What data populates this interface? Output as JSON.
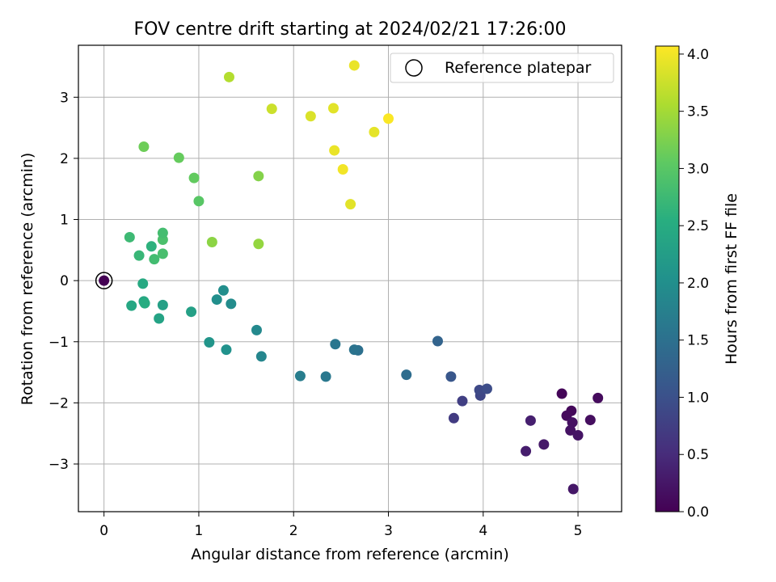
{
  "chart_data": {
    "type": "scatter",
    "title": "FOV centre drift starting at 2024/02/21 17:26:00",
    "xlabel": "Angular distance from reference (arcmin)",
    "ylabel": "Rotation from reference (arcmin)",
    "xlim": [
      -0.27,
      5.46
    ],
    "ylim": [
      -3.78,
      3.85
    ],
    "xticks": [
      0,
      1,
      2,
      3,
      4,
      5
    ],
    "xtick_labels": [
      "0",
      "1",
      "2",
      "3",
      "4",
      "5"
    ],
    "yticks": [
      -3,
      -2,
      -1,
      0,
      1,
      2,
      3
    ],
    "ytick_labels": [
      "−3",
      "−2",
      "−1",
      "0",
      "1",
      "2",
      "3"
    ],
    "grid": true,
    "legend": {
      "position": "upper right",
      "entries": [
        {
          "label": "Reference platepar",
          "marker": "open-circle"
        }
      ]
    },
    "reference_point": {
      "x": 0,
      "y": 0
    },
    "colorbar": {
      "label": "Hours from first FF file",
      "range": [
        0.0,
        4.07
      ],
      "colormap": "viridis",
      "ticks": [
        0.0,
        0.5,
        1.0,
        1.5,
        2.0,
        2.5,
        3.0,
        3.5,
        4.0
      ],
      "tick_labels": [
        "0.0",
        "0.5",
        "1.0",
        "1.5",
        "2.0",
        "2.5",
        "3.0",
        "3.5",
        "4.0"
      ]
    },
    "points": [
      {
        "x": 0.0,
        "y": 0.0,
        "hours": 0.0
      },
      {
        "x": 4.83,
        "y": -1.85,
        "hours": 0.05
      },
      {
        "x": 4.93,
        "y": -2.13,
        "hours": 0.08
      },
      {
        "x": 4.88,
        "y": -2.21,
        "hours": 0.1
      },
      {
        "x": 5.21,
        "y": -1.92,
        "hours": 0.12
      },
      {
        "x": 5.13,
        "y": -2.28,
        "hours": 0.15
      },
      {
        "x": 4.94,
        "y": -2.32,
        "hours": 0.18
      },
      {
        "x": 4.92,
        "y": -2.45,
        "hours": 0.2
      },
      {
        "x": 5.0,
        "y": -2.53,
        "hours": 0.22
      },
      {
        "x": 4.95,
        "y": -3.41,
        "hours": 0.25
      },
      {
        "x": 4.64,
        "y": -2.68,
        "hours": 0.28
      },
      {
        "x": 4.45,
        "y": -2.79,
        "hours": 0.32
      },
      {
        "x": 4.5,
        "y": -2.29,
        "hours": 0.35
      },
      {
        "x": 3.69,
        "y": -2.25,
        "hours": 0.7
      },
      {
        "x": 3.78,
        "y": -1.97,
        "hours": 0.75
      },
      {
        "x": 3.97,
        "y": -1.88,
        "hours": 0.85
      },
      {
        "x": 3.96,
        "y": -1.79,
        "hours": 0.9
      },
      {
        "x": 4.04,
        "y": -1.77,
        "hours": 0.95
      },
      {
        "x": 3.66,
        "y": -1.57,
        "hours": 1.1
      },
      {
        "x": 3.52,
        "y": -0.99,
        "hours": 1.3
      },
      {
        "x": 3.19,
        "y": -1.54,
        "hours": 1.45
      },
      {
        "x": 2.68,
        "y": -1.14,
        "hours": 1.5
      },
      {
        "x": 2.64,
        "y": -1.13,
        "hours": 1.55
      },
      {
        "x": 2.44,
        "y": -1.04,
        "hours": 1.6
      },
      {
        "x": 2.34,
        "y": -1.57,
        "hours": 1.62
      },
      {
        "x": 2.07,
        "y": -1.56,
        "hours": 1.7
      },
      {
        "x": 1.66,
        "y": -1.24,
        "hours": 1.85
      },
      {
        "x": 1.61,
        "y": -0.81,
        "hours": 1.9
      },
      {
        "x": 1.34,
        "y": -0.38,
        "hours": 1.95
      },
      {
        "x": 1.26,
        "y": -0.16,
        "hours": 1.98
      },
      {
        "x": 1.19,
        "y": -0.31,
        "hours": 2.0
      },
      {
        "x": 1.29,
        "y": -1.13,
        "hours": 2.05
      },
      {
        "x": 1.11,
        "y": -1.01,
        "hours": 2.1
      },
      {
        "x": 0.92,
        "y": -0.51,
        "hours": 2.3
      },
      {
        "x": 0.62,
        "y": -0.4,
        "hours": 2.3
      },
      {
        "x": 0.58,
        "y": -0.62,
        "hours": 2.35
      },
      {
        "x": 0.42,
        "y": -0.34,
        "hours": 2.4
      },
      {
        "x": 0.43,
        "y": -0.37,
        "hours": 2.5
      },
      {
        "x": 0.29,
        "y": -0.41,
        "hours": 2.42
      },
      {
        "x": 0.41,
        "y": -0.05,
        "hours": 2.45
      },
      {
        "x": 0.5,
        "y": 0.56,
        "hours": 2.6
      },
      {
        "x": 0.53,
        "y": 0.35,
        "hours": 2.8
      },
      {
        "x": 0.37,
        "y": 0.41,
        "hours": 2.7
      },
      {
        "x": 0.27,
        "y": 0.71,
        "hours": 2.75
      },
      {
        "x": 0.62,
        "y": 0.44,
        "hours": 2.85
      },
      {
        "x": 0.62,
        "y": 0.67,
        "hours": 2.88
      },
      {
        "x": 0.62,
        "y": 0.78,
        "hours": 2.82
      },
      {
        "x": 1.0,
        "y": 1.3,
        "hours": 3.0
      },
      {
        "x": 0.95,
        "y": 1.68,
        "hours": 3.08
      },
      {
        "x": 0.79,
        "y": 2.01,
        "hours": 3.1
      },
      {
        "x": 0.42,
        "y": 2.19,
        "hours": 3.15
      },
      {
        "x": 1.14,
        "y": 0.63,
        "hours": 3.35
      },
      {
        "x": 1.63,
        "y": 0.6,
        "hours": 3.4
      },
      {
        "x": 1.63,
        "y": 1.71,
        "hours": 3.3
      },
      {
        "x": 1.32,
        "y": 3.33,
        "hours": 3.6
      },
      {
        "x": 1.77,
        "y": 2.81,
        "hours": 3.75
      },
      {
        "x": 2.18,
        "y": 2.69,
        "hours": 3.85
      },
      {
        "x": 2.42,
        "y": 2.82,
        "hours": 3.9
      },
      {
        "x": 2.43,
        "y": 2.13,
        "hours": 3.95
      },
      {
        "x": 2.52,
        "y": 1.82,
        "hours": 4.0
      },
      {
        "x": 2.6,
        "y": 1.25,
        "hours": 3.9
      },
      {
        "x": 2.64,
        "y": 3.52,
        "hours": 3.95
      },
      {
        "x": 2.85,
        "y": 2.43,
        "hours": 3.92
      },
      {
        "x": 3.0,
        "y": 2.65,
        "hours": 4.05
      }
    ]
  }
}
